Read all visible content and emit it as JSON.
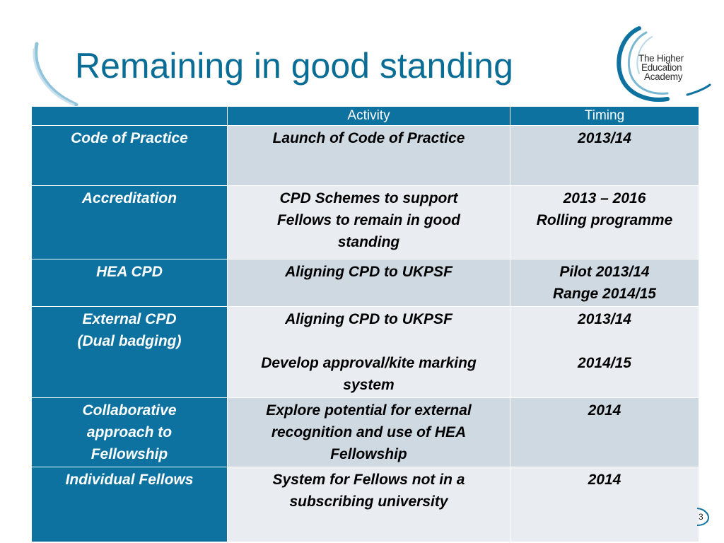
{
  "slide": {
    "title": "Remaining in good standing",
    "page_number": "3",
    "accent_color": "#0d72a0",
    "title_color": "#0a6d96"
  },
  "logo": {
    "lines": [
      "The Higher",
      "Education",
      "Academy"
    ]
  },
  "table": {
    "headers": [
      "",
      "Activity",
      "Timing"
    ],
    "rows": [
      {
        "area": [
          "Code of Practice"
        ],
        "activity": [
          [
            "Launch of Code of Practice"
          ]
        ],
        "timing": [
          [
            "2013/14"
          ]
        ]
      },
      {
        "area": [
          "Accreditation"
        ],
        "activity": [
          [
            "CPD Schemes to support",
            "Fellows to remain in good",
            "standing"
          ]
        ],
        "timing": [
          [
            "2013 – 2016",
            "Rolling programme"
          ]
        ]
      },
      {
        "area": [
          "HEA CPD"
        ],
        "activity": [
          [
            "Aligning CPD to UKPSF"
          ]
        ],
        "timing": [
          [
            "Pilot 2013/14",
            "Range 2014/15"
          ]
        ]
      },
      {
        "area": [
          "External CPD",
          "(Dual badging)"
        ],
        "activity": [
          [
            "Aligning CPD to UKPSF"
          ],
          [
            "Develop approval/kite marking",
            "system"
          ]
        ],
        "timing": [
          [
            "2013/14"
          ],
          [
            "2014/15"
          ]
        ]
      },
      {
        "area": [
          "Collaborative",
          "approach to",
          "Fellowship"
        ],
        "activity": [
          [
            "Explore potential for external",
            "recognition and use of HEA",
            "Fellowship"
          ]
        ],
        "timing": [
          [
            "2014"
          ]
        ]
      },
      {
        "area": [
          "Individual Fellows"
        ],
        "activity": [
          [
            "System for Fellows not in a",
            "subscribing university"
          ]
        ],
        "timing": [
          [
            "2014"
          ]
        ]
      }
    ]
  }
}
